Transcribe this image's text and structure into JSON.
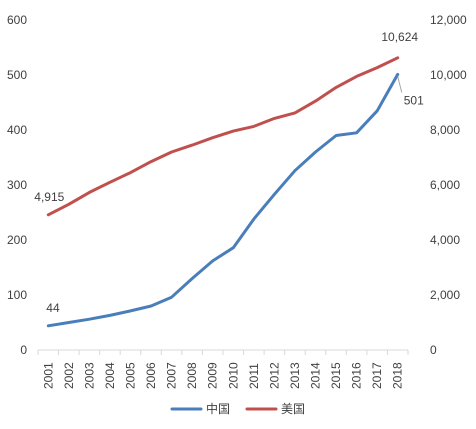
{
  "chart_data": {
    "type": "line",
    "x": [
      "2001",
      "2002",
      "2003",
      "2004",
      "2005",
      "2006",
      "2007",
      "2008",
      "2009",
      "2010",
      "2011",
      "2012",
      "2013",
      "2014",
      "2015",
      "2016",
      "2017",
      "2018"
    ],
    "series": [
      {
        "name": "中国",
        "axis": "left",
        "color": "#4a7ebb",
        "values": [
          44,
          50,
          56,
          63,
          71,
          80,
          96,
          130,
          162,
          186,
          238,
          283,
          326,
          360,
          390,
          395,
          435,
          501
        ]
      },
      {
        "name": "美国",
        "axis": "right",
        "color": "#c0504d",
        "values": [
          4915,
          5300,
          5730,
          6100,
          6450,
          6850,
          7200,
          7450,
          7720,
          7960,
          8130,
          8420,
          8620,
          9050,
          9550,
          9950,
          10270,
          10624
        ]
      }
    ],
    "y_left": {
      "range": [
        0,
        600
      ],
      "ticks": [
        "0",
        "100",
        "200",
        "300",
        "400",
        "500",
        "600"
      ]
    },
    "y_right": {
      "range": [
        0,
        12000
      ],
      "ticks": [
        "0",
        "2,000",
        "4,000",
        "6,000",
        "8,000",
        "10,000",
        "12,000"
      ]
    },
    "annotations": [
      {
        "series": 0,
        "index": 0,
        "text": "44"
      },
      {
        "series": 0,
        "index": 17,
        "text": "501"
      },
      {
        "series": 1,
        "index": 0,
        "text": "4,915"
      },
      {
        "series": 1,
        "index": 17,
        "text": "10,624"
      }
    ],
    "legend": {
      "placement": "bottom",
      "items": [
        "中国",
        "美国"
      ]
    },
    "grid": false,
    "xlabel": "",
    "ylabel": ""
  },
  "colors": {
    "axis": "#d9d9d9",
    "text": "#404040",
    "china": "#4a7ebb",
    "usa": "#c0504d"
  }
}
